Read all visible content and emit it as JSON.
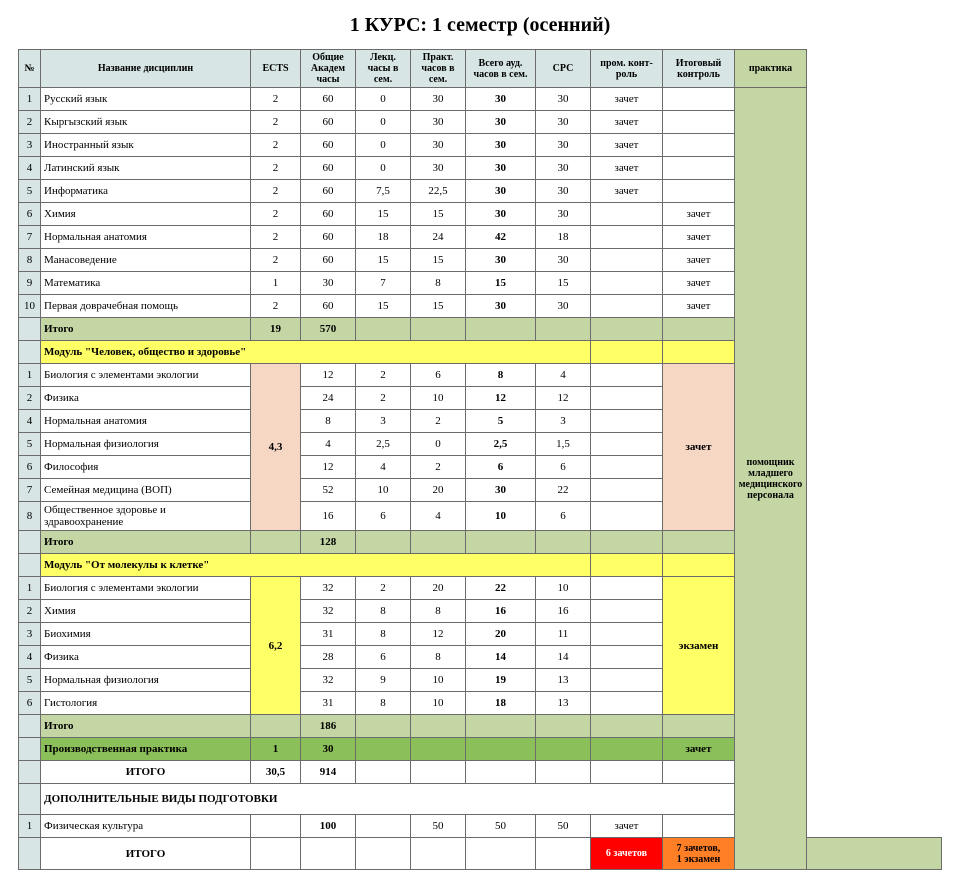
{
  "title_prefix": "1 КУРС: 1 семестр (",
  "title_paren": "осенний",
  "title_suffix": ")",
  "headers": {
    "num": "№",
    "name": "Название дисциплин",
    "ects": "ECTS",
    "hours": "Общие Академ часы",
    "lec": "Лекц. часы в сем.",
    "prk": "Практ. часов в сем.",
    "aud": "Всего ауд. часов в сем.",
    "crc": "СРС",
    "pk": "пром. конт-роль",
    "ik": "Итоговый контроль",
    "prak": "практика"
  },
  "practice_label": "помощник младшего медицинского персонала",
  "block1": [
    {
      "n": "1",
      "name": "Русский язык",
      "ects": "2",
      "h": "60",
      "lec": "0",
      "pr": "30",
      "aud": "30",
      "crc": "30",
      "pk": "зачет",
      "ik": ""
    },
    {
      "n": "2",
      "name": "Кыргызский язык",
      "ects": "2",
      "h": "60",
      "lec": "0",
      "pr": "30",
      "aud": "30",
      "crc": "30",
      "pk": "зачет",
      "ik": ""
    },
    {
      "n": "3",
      "name": "Иностранный язык",
      "ects": "2",
      "h": "60",
      "lec": "0",
      "pr": "30",
      "aud": "30",
      "crc": "30",
      "pk": "зачет",
      "ik": ""
    },
    {
      "n": "4",
      "name": "Латинский язык",
      "ects": "2",
      "h": "60",
      "lec": "0",
      "pr": "30",
      "aud": "30",
      "crc": "30",
      "pk": "зачет",
      "ik": ""
    },
    {
      "n": "5",
      "name": "Информатика",
      "ects": "2",
      "h": "60",
      "lec": "7,5",
      "pr": "22,5",
      "aud": "30",
      "crc": "30",
      "pk": "зачет",
      "ik": ""
    },
    {
      "n": "6",
      "name": "Химия",
      "ects": "2",
      "h": "60",
      "lec": "15",
      "pr": "15",
      "aud": "30",
      "crc": "30",
      "pk": "",
      "ik": "зачет"
    },
    {
      "n": "7",
      "name": "Нормальная анатомия",
      "ects": "2",
      "h": "60",
      "lec": "18",
      "pr": "24",
      "aud": "42",
      "crc": "18",
      "pk": "",
      "ik": "зачет"
    },
    {
      "n": "8",
      "name": "Манасоведение",
      "ects": "2",
      "h": "60",
      "lec": "15",
      "pr": "15",
      "aud": "30",
      "crc": "30",
      "pk": "",
      "ik": "зачет"
    },
    {
      "n": "9",
      "name": "Математика",
      "ects": "1",
      "h": "30",
      "lec": "7",
      "pr": "8",
      "aud": "15",
      "crc": "15",
      "pk": "",
      "ik": "зачет"
    },
    {
      "n": "10",
      "name": "Первая доврачебная помощь",
      "ects": "2",
      "h": "60",
      "lec": "15",
      "pr": "15",
      "aud": "30",
      "crc": "30",
      "pk": "",
      "ik": "зачет"
    }
  ],
  "block1_itogo": {
    "label": "Итого",
    "ects": "19",
    "h": "570"
  },
  "module1_title": "Модуль \"Человек, общество и здоровье\"",
  "module1_ects": "4,3",
  "module1_ik": "зачет",
  "module1": [
    {
      "n": "1",
      "name": "Биология с элементами экологии",
      "h": "12",
      "lec": "2",
      "pr": "6",
      "aud": "8",
      "crc": "4"
    },
    {
      "n": "2",
      "name": "Физика",
      "h": "24",
      "lec": "2",
      "pr": "10",
      "aud": "12",
      "crc": "12"
    },
    {
      "n": "4",
      "name": "Нормальная анатомия",
      "h": "8",
      "lec": "3",
      "pr": "2",
      "aud": "5",
      "crc": "3"
    },
    {
      "n": "5",
      "name": "Нормальная физиология",
      "h": "4",
      "lec": "2,5",
      "pr": "0",
      "aud": "2,5",
      "crc": "1,5"
    },
    {
      "n": "6",
      "name": "Философия",
      "h": "12",
      "lec": "4",
      "pr": "2",
      "aud": "6",
      "crc": "6"
    },
    {
      "n": "7",
      "name": "Семейная медицина (ВОП)",
      "h": "52",
      "lec": "10",
      "pr": "20",
      "aud": "30",
      "crc": "22"
    },
    {
      "n": "8",
      "name": "Общественное здоровье и здравоохранение",
      "h": "16",
      "lec": "6",
      "pr": "4",
      "aud": "10",
      "crc": "6"
    }
  ],
  "module1_itogo": {
    "label": "Итого",
    "h": "128"
  },
  "module2_title": "Модуль \"От молекулы к клетке\"",
  "module2_ects": "6,2",
  "module2_ik": "экзамен",
  "module2": [
    {
      "n": "1",
      "name": "Биология с элементами экологии",
      "h": "32",
      "lec": "2",
      "pr": "20",
      "aud": "22",
      "crc": "10"
    },
    {
      "n": "2",
      "name": "Химия",
      "h": "32",
      "lec": "8",
      "pr": "8",
      "aud": "16",
      "crc": "16"
    },
    {
      "n": "3",
      "name": "Биохимия",
      "h": "31",
      "lec": "8",
      "pr": "12",
      "aud": "20",
      "crc": "11"
    },
    {
      "n": "4",
      "name": "Физика",
      "h": "28",
      "lec": "6",
      "pr": "8",
      "aud": "14",
      "crc": "14"
    },
    {
      "n": "5",
      "name": "Нормальная физиология",
      "h": "32",
      "lec": "9",
      "pr": "10",
      "aud": "19",
      "crc": "13"
    },
    {
      "n": "6",
      "name": "Гистология",
      "h": "31",
      "lec": "8",
      "pr": "10",
      "aud": "18",
      "crc": "13"
    }
  ],
  "module2_itogo": {
    "label": "Итого",
    "h": "186"
  },
  "prod_practice": {
    "label": "Производственная практика",
    "ects": "1",
    "h": "30",
    "ik": "зачет"
  },
  "grand_total": {
    "label": "ИТОГО",
    "ects": "30,5",
    "h": "914"
  },
  "extra_section": "ДОПОЛНИТЕЛЬНЫЕ ВИДЫ ПОДГОТОВКИ",
  "extra_row": {
    "n": "1",
    "name": "Физическая культура",
    "h": "100",
    "pr": "50",
    "aud": "50",
    "crc": "50",
    "pk": "зачет"
  },
  "final_total": {
    "label": "ИТОГО",
    "red": "6 зачетов",
    "orange": "7 зачетов,\n1 экзамен"
  }
}
